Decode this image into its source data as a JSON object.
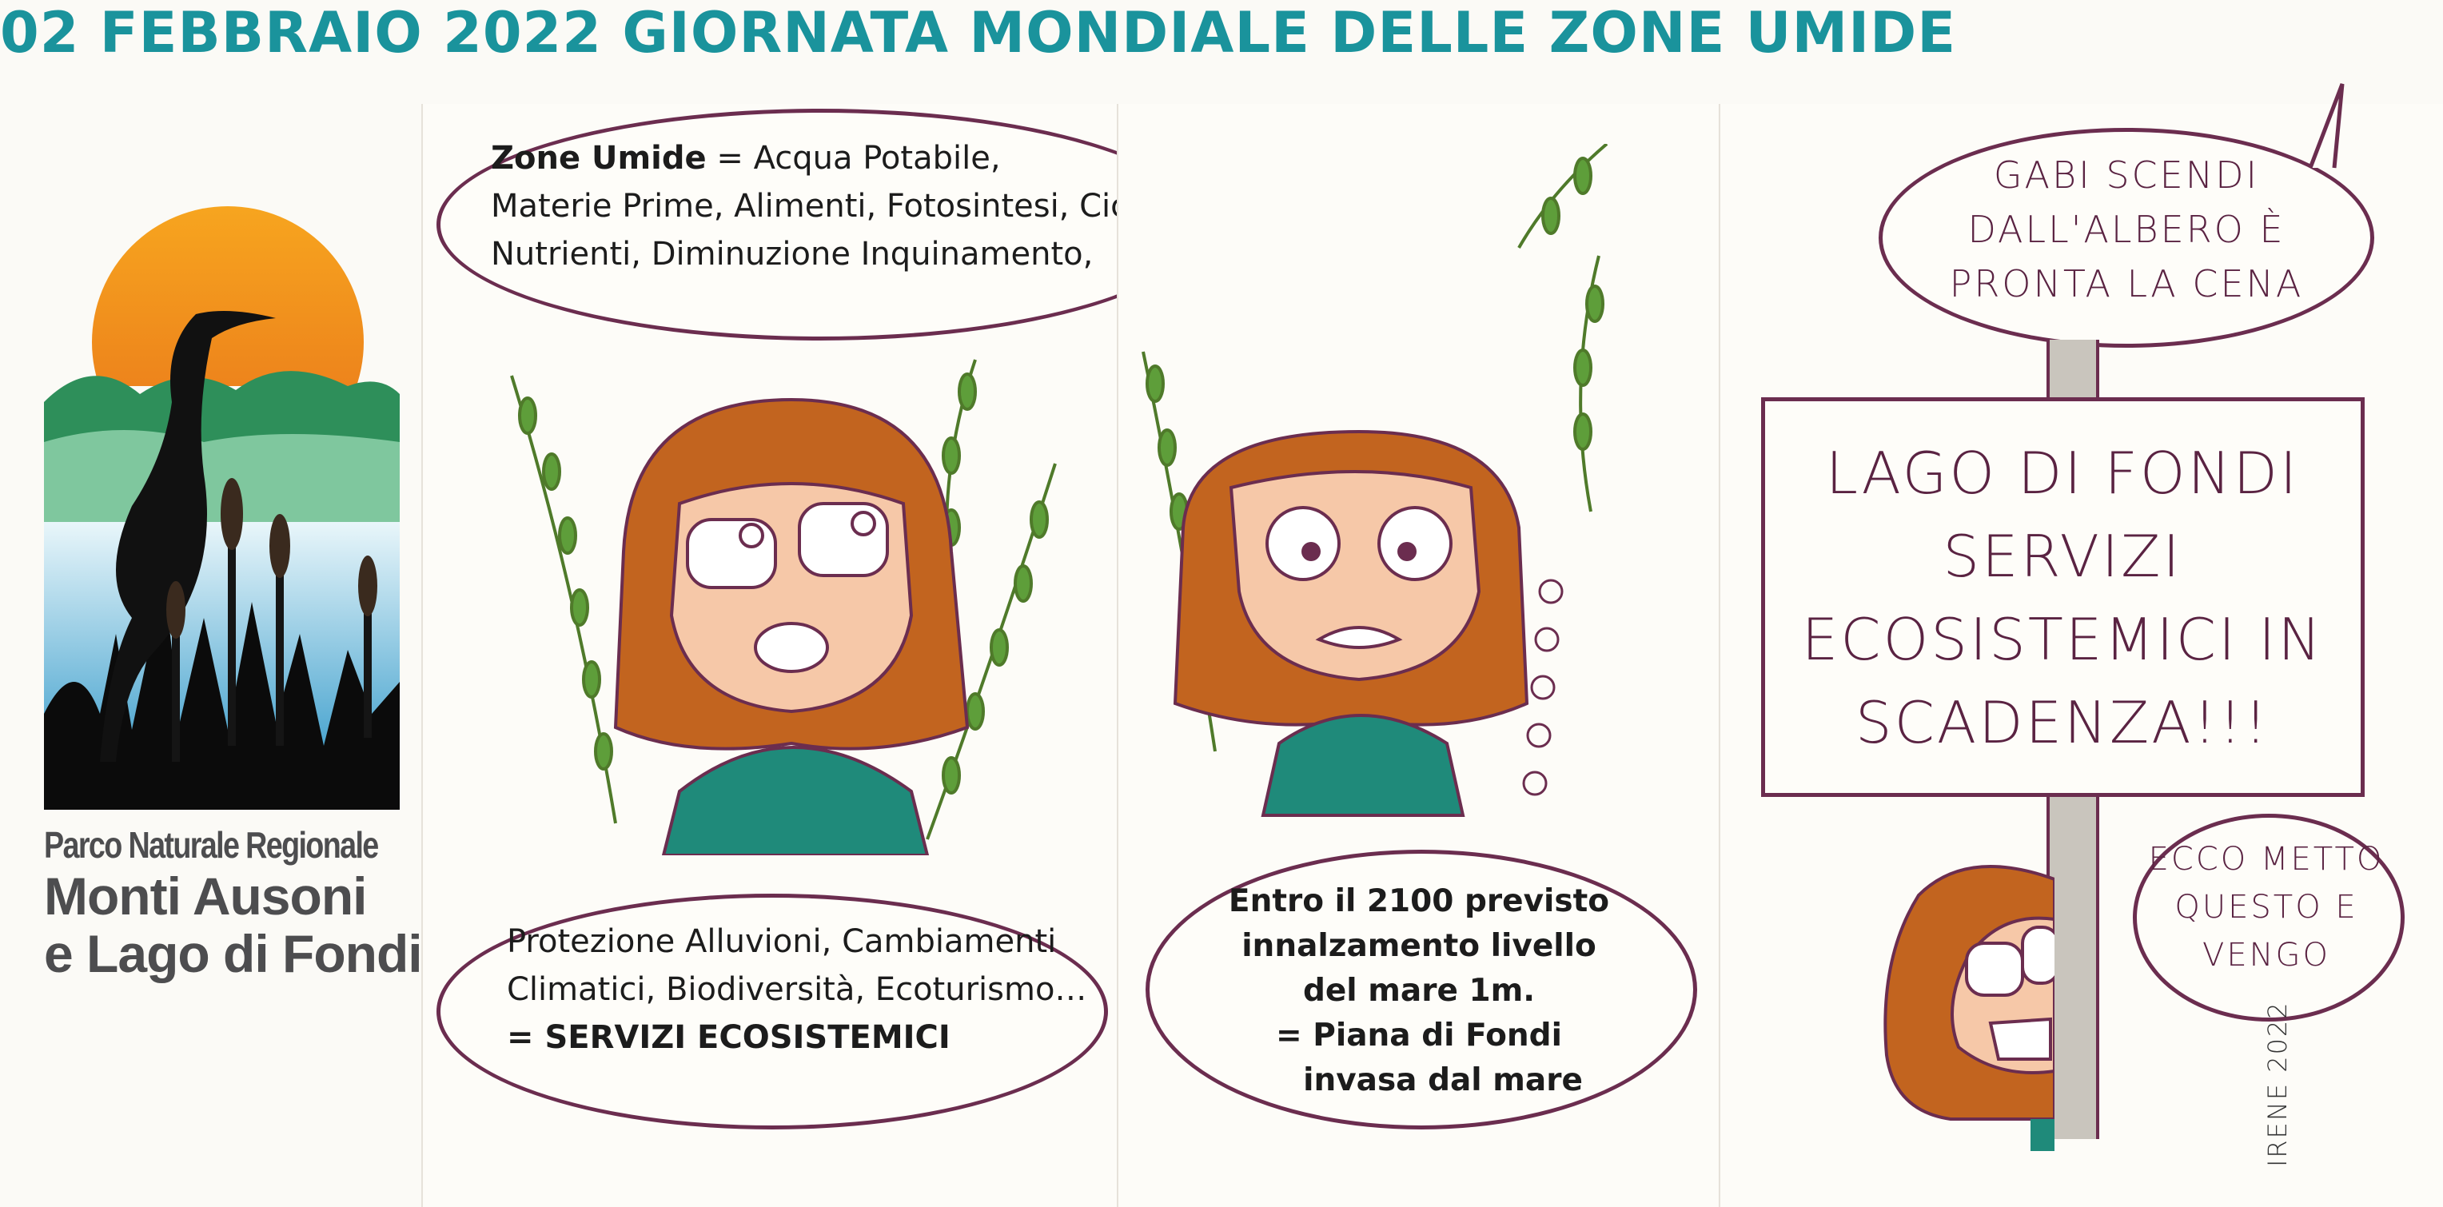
{
  "header": {
    "title": "02 FEBBRAIO 2022 GIORNATA MONDIALE DELLE ZONE UMIDE",
    "color": "#1a939c"
  },
  "logo": {
    "line1": "Parco Naturale Regionale",
    "line2": "Monti Ausoni",
    "line3": "e Lago di Fondi"
  },
  "panel1": {
    "top_bubble": {
      "bold": "Zone Umide",
      "line1": " = Acqua Potabile,",
      "line2": "Materie Prime, Alimenti, Fotosintesi, Ciclo",
      "line3": "Nutrienti, Diminuzione Inquinamento,"
    },
    "bottom_bubble": {
      "line1": "Protezione Alluvioni, Cambiamenti",
      "line2": "Climatici, Biodiversità, Ecoturismo…",
      "line3": "= SERVIZI ECOSISTEMICI"
    }
  },
  "panel2": {
    "bubble": {
      "line1": "Entro il 2100 previsto",
      "line2": "innalzamento livello",
      "line3": "del mare 1m.",
      "line4": "= Piana di Fondi",
      "line5": "invasa dal mare"
    }
  },
  "panel3": {
    "top_bubble": {
      "line1": "GABI SCENDI",
      "line2": "DALL'ALBERO È",
      "line3": "PRONTA LA CENA"
    },
    "sign": {
      "line1": "LAGO DI FONDI",
      "line2": "SERVIZI",
      "line3": "ECOSISTEMICI IN",
      "line4": "SCADENZA!!!"
    },
    "reply_bubble": {
      "line1": "ECCO METTO",
      "line2": "QUESTO E",
      "line3": "VENGO"
    },
    "signature": "IRENE 2022"
  }
}
